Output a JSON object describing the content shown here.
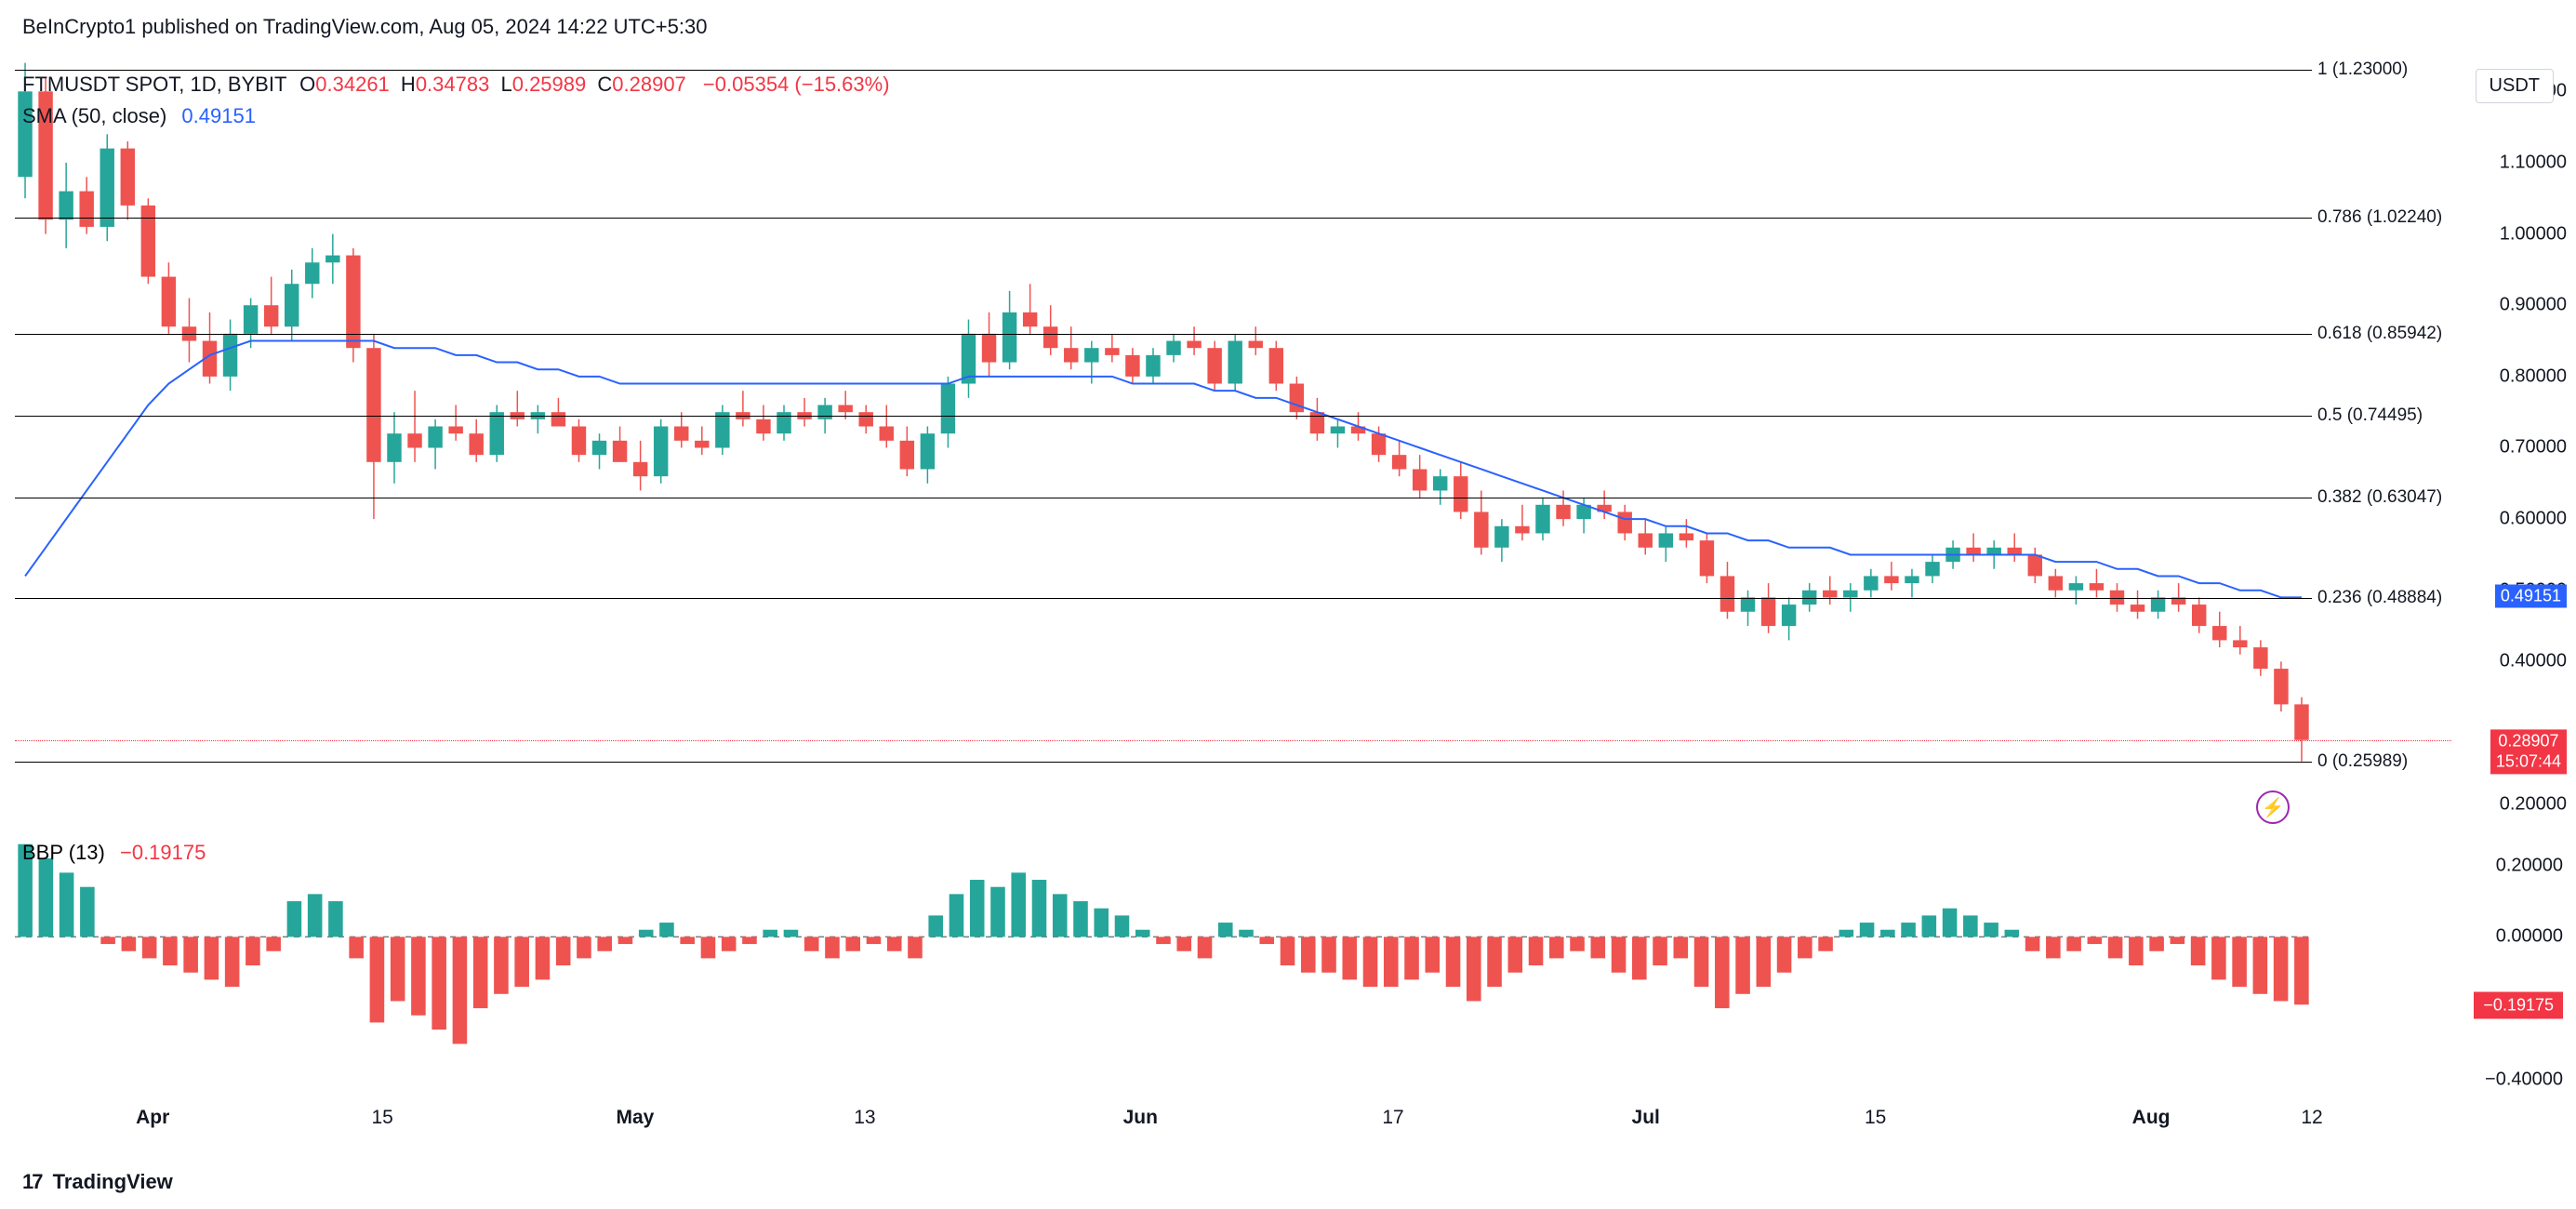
{
  "header": {
    "publisher": "BeInCrypto1 published on TradingView.com, Aug 05, 2024 14:22 UTC+5:30"
  },
  "symbol": {
    "pair": "FTMUSDT SPOT, 1D, BYBIT",
    "o_label": "O",
    "o": "0.34261",
    "h_label": "H",
    "h": "0.34783",
    "l_label": "L",
    "l": "0.25989",
    "c_label": "C",
    "c": "0.28907",
    "change": "−0.05354 (−15.63%)"
  },
  "sma": {
    "label": "SMA (50, close)",
    "value": "0.49151"
  },
  "currency_badge": "USDT",
  "price_axis": {
    "ticks": [
      "1.20000",
      "1.10000",
      "1.00000",
      "0.90000",
      "0.80000",
      "0.70000",
      "0.60000",
      "0.50000",
      "0.40000",
      "0.20000"
    ],
    "ymin": 0.18,
    "ymax": 1.25,
    "sma_tag": "0.49151",
    "close_tag": "0.28907",
    "time_tag": "15:07:44"
  },
  "fib": {
    "levels": [
      {
        "ratio": "1",
        "price": "1.23000",
        "y": 1.23
      },
      {
        "ratio": "0.786",
        "price": "1.02240",
        "y": 1.0224
      },
      {
        "ratio": "0.618",
        "price": "0.85942",
        "y": 0.85942
      },
      {
        "ratio": "0.5",
        "price": "0.74495",
        "y": 0.74495
      },
      {
        "ratio": "0.382",
        "price": "0.63047",
        "y": 0.63047
      },
      {
        "ratio": "0.236",
        "price": "0.48884",
        "y": 0.48884
      },
      {
        "ratio": "0",
        "price": "0.25989",
        "y": 0.25989
      }
    ]
  },
  "candles": {
    "up_color": "#26a69a",
    "down_color": "#ef5350",
    "data": [
      {
        "o": 1.08,
        "h": 1.24,
        "l": 1.05,
        "c": 1.2
      },
      {
        "o": 1.2,
        "h": 1.22,
        "l": 1.0,
        "c": 1.02
      },
      {
        "o": 1.02,
        "h": 1.1,
        "l": 0.98,
        "c": 1.06
      },
      {
        "o": 1.06,
        "h": 1.08,
        "l": 1.0,
        "c": 1.01
      },
      {
        "o": 1.01,
        "h": 1.14,
        "l": 0.99,
        "c": 1.12
      },
      {
        "o": 1.12,
        "h": 1.13,
        "l": 1.02,
        "c": 1.04
      },
      {
        "o": 1.04,
        "h": 1.05,
        "l": 0.93,
        "c": 0.94
      },
      {
        "o": 0.94,
        "h": 0.96,
        "l": 0.86,
        "c": 0.87
      },
      {
        "o": 0.87,
        "h": 0.91,
        "l": 0.82,
        "c": 0.85
      },
      {
        "o": 0.85,
        "h": 0.89,
        "l": 0.79,
        "c": 0.8
      },
      {
        "o": 0.8,
        "h": 0.88,
        "l": 0.78,
        "c": 0.86
      },
      {
        "o": 0.86,
        "h": 0.91,
        "l": 0.84,
        "c": 0.9
      },
      {
        "o": 0.9,
        "h": 0.94,
        "l": 0.86,
        "c": 0.87
      },
      {
        "o": 0.87,
        "h": 0.95,
        "l": 0.85,
        "c": 0.93
      },
      {
        "o": 0.93,
        "h": 0.98,
        "l": 0.91,
        "c": 0.96
      },
      {
        "o": 0.96,
        "h": 1.0,
        "l": 0.93,
        "c": 0.97
      },
      {
        "o": 0.97,
        "h": 0.98,
        "l": 0.82,
        "c": 0.84
      },
      {
        "o": 0.84,
        "h": 0.86,
        "l": 0.6,
        "c": 0.68
      },
      {
        "o": 0.68,
        "h": 0.75,
        "l": 0.65,
        "c": 0.72
      },
      {
        "o": 0.72,
        "h": 0.78,
        "l": 0.68,
        "c": 0.7
      },
      {
        "o": 0.7,
        "h": 0.74,
        "l": 0.67,
        "c": 0.73
      },
      {
        "o": 0.73,
        "h": 0.76,
        "l": 0.71,
        "c": 0.72
      },
      {
        "o": 0.72,
        "h": 0.74,
        "l": 0.68,
        "c": 0.69
      },
      {
        "o": 0.69,
        "h": 0.76,
        "l": 0.68,
        "c": 0.75
      },
      {
        "o": 0.75,
        "h": 0.78,
        "l": 0.73,
        "c": 0.74
      },
      {
        "o": 0.74,
        "h": 0.76,
        "l": 0.72,
        "c": 0.75
      },
      {
        "o": 0.75,
        "h": 0.77,
        "l": 0.73,
        "c": 0.73
      },
      {
        "o": 0.73,
        "h": 0.74,
        "l": 0.68,
        "c": 0.69
      },
      {
        "o": 0.69,
        "h": 0.72,
        "l": 0.67,
        "c": 0.71
      },
      {
        "o": 0.71,
        "h": 0.73,
        "l": 0.68,
        "c": 0.68
      },
      {
        "o": 0.68,
        "h": 0.71,
        "l": 0.64,
        "c": 0.66
      },
      {
        "o": 0.66,
        "h": 0.74,
        "l": 0.65,
        "c": 0.73
      },
      {
        "o": 0.73,
        "h": 0.75,
        "l": 0.7,
        "c": 0.71
      },
      {
        "o": 0.71,
        "h": 0.73,
        "l": 0.69,
        "c": 0.7
      },
      {
        "o": 0.7,
        "h": 0.76,
        "l": 0.69,
        "c": 0.75
      },
      {
        "o": 0.75,
        "h": 0.78,
        "l": 0.73,
        "c": 0.74
      },
      {
        "o": 0.74,
        "h": 0.76,
        "l": 0.71,
        "c": 0.72
      },
      {
        "o": 0.72,
        "h": 0.76,
        "l": 0.71,
        "c": 0.75
      },
      {
        "o": 0.75,
        "h": 0.77,
        "l": 0.73,
        "c": 0.74
      },
      {
        "o": 0.74,
        "h": 0.77,
        "l": 0.72,
        "c": 0.76
      },
      {
        "o": 0.76,
        "h": 0.78,
        "l": 0.74,
        "c": 0.75
      },
      {
        "o": 0.75,
        "h": 0.76,
        "l": 0.72,
        "c": 0.73
      },
      {
        "o": 0.73,
        "h": 0.76,
        "l": 0.7,
        "c": 0.71
      },
      {
        "o": 0.71,
        "h": 0.73,
        "l": 0.66,
        "c": 0.67
      },
      {
        "o": 0.67,
        "h": 0.73,
        "l": 0.65,
        "c": 0.72
      },
      {
        "o": 0.72,
        "h": 0.8,
        "l": 0.7,
        "c": 0.79
      },
      {
        "o": 0.79,
        "h": 0.88,
        "l": 0.77,
        "c": 0.86
      },
      {
        "o": 0.86,
        "h": 0.89,
        "l": 0.8,
        "c": 0.82
      },
      {
        "o": 0.82,
        "h": 0.92,
        "l": 0.81,
        "c": 0.89
      },
      {
        "o": 0.89,
        "h": 0.93,
        "l": 0.86,
        "c": 0.87
      },
      {
        "o": 0.87,
        "h": 0.9,
        "l": 0.83,
        "c": 0.84
      },
      {
        "o": 0.84,
        "h": 0.87,
        "l": 0.81,
        "c": 0.82
      },
      {
        "o": 0.82,
        "h": 0.85,
        "l": 0.79,
        "c": 0.84
      },
      {
        "o": 0.84,
        "h": 0.86,
        "l": 0.82,
        "c": 0.83
      },
      {
        "o": 0.83,
        "h": 0.84,
        "l": 0.79,
        "c": 0.8
      },
      {
        "o": 0.8,
        "h": 0.84,
        "l": 0.79,
        "c": 0.83
      },
      {
        "o": 0.83,
        "h": 0.86,
        "l": 0.82,
        "c": 0.85
      },
      {
        "o": 0.85,
        "h": 0.87,
        "l": 0.83,
        "c": 0.84
      },
      {
        "o": 0.84,
        "h": 0.85,
        "l": 0.78,
        "c": 0.79
      },
      {
        "o": 0.79,
        "h": 0.86,
        "l": 0.78,
        "c": 0.85
      },
      {
        "o": 0.85,
        "h": 0.87,
        "l": 0.83,
        "c": 0.84
      },
      {
        "o": 0.84,
        "h": 0.85,
        "l": 0.78,
        "c": 0.79
      },
      {
        "o": 0.79,
        "h": 0.8,
        "l": 0.74,
        "c": 0.75
      },
      {
        "o": 0.75,
        "h": 0.77,
        "l": 0.71,
        "c": 0.72
      },
      {
        "o": 0.72,
        "h": 0.74,
        "l": 0.7,
        "c": 0.73
      },
      {
        "o": 0.73,
        "h": 0.75,
        "l": 0.71,
        "c": 0.72
      },
      {
        "o": 0.72,
        "h": 0.73,
        "l": 0.68,
        "c": 0.69
      },
      {
        "o": 0.69,
        "h": 0.71,
        "l": 0.66,
        "c": 0.67
      },
      {
        "o": 0.67,
        "h": 0.69,
        "l": 0.63,
        "c": 0.64
      },
      {
        "o": 0.64,
        "h": 0.67,
        "l": 0.62,
        "c": 0.66
      },
      {
        "o": 0.66,
        "h": 0.68,
        "l": 0.6,
        "c": 0.61
      },
      {
        "o": 0.61,
        "h": 0.64,
        "l": 0.55,
        "c": 0.56
      },
      {
        "o": 0.56,
        "h": 0.6,
        "l": 0.54,
        "c": 0.59
      },
      {
        "o": 0.59,
        "h": 0.62,
        "l": 0.57,
        "c": 0.58
      },
      {
        "o": 0.58,
        "h": 0.63,
        "l": 0.57,
        "c": 0.62
      },
      {
        "o": 0.62,
        "h": 0.64,
        "l": 0.59,
        "c": 0.6
      },
      {
        "o": 0.6,
        "h": 0.63,
        "l": 0.58,
        "c": 0.62
      },
      {
        "o": 0.62,
        "h": 0.64,
        "l": 0.6,
        "c": 0.61
      },
      {
        "o": 0.61,
        "h": 0.62,
        "l": 0.57,
        "c": 0.58
      },
      {
        "o": 0.58,
        "h": 0.6,
        "l": 0.55,
        "c": 0.56
      },
      {
        "o": 0.56,
        "h": 0.59,
        "l": 0.54,
        "c": 0.58
      },
      {
        "o": 0.58,
        "h": 0.6,
        "l": 0.56,
        "c": 0.57
      },
      {
        "o": 0.57,
        "h": 0.58,
        "l": 0.51,
        "c": 0.52
      },
      {
        "o": 0.52,
        "h": 0.54,
        "l": 0.46,
        "c": 0.47
      },
      {
        "o": 0.47,
        "h": 0.5,
        "l": 0.45,
        "c": 0.49
      },
      {
        "o": 0.49,
        "h": 0.51,
        "l": 0.44,
        "c": 0.45
      },
      {
        "o": 0.45,
        "h": 0.49,
        "l": 0.43,
        "c": 0.48
      },
      {
        "o": 0.48,
        "h": 0.51,
        "l": 0.47,
        "c": 0.5
      },
      {
        "o": 0.5,
        "h": 0.52,
        "l": 0.48,
        "c": 0.49
      },
      {
        "o": 0.49,
        "h": 0.51,
        "l": 0.47,
        "c": 0.5
      },
      {
        "o": 0.5,
        "h": 0.53,
        "l": 0.49,
        "c": 0.52
      },
      {
        "o": 0.52,
        "h": 0.54,
        "l": 0.5,
        "c": 0.51
      },
      {
        "o": 0.51,
        "h": 0.53,
        "l": 0.49,
        "c": 0.52
      },
      {
        "o": 0.52,
        "h": 0.55,
        "l": 0.51,
        "c": 0.54
      },
      {
        "o": 0.54,
        "h": 0.57,
        "l": 0.53,
        "c": 0.56
      },
      {
        "o": 0.56,
        "h": 0.58,
        "l": 0.54,
        "c": 0.55
      },
      {
        "o": 0.55,
        "h": 0.57,
        "l": 0.53,
        "c": 0.56
      },
      {
        "o": 0.56,
        "h": 0.58,
        "l": 0.54,
        "c": 0.55
      },
      {
        "o": 0.55,
        "h": 0.56,
        "l": 0.51,
        "c": 0.52
      },
      {
        "o": 0.52,
        "h": 0.53,
        "l": 0.49,
        "c": 0.5
      },
      {
        "o": 0.5,
        "h": 0.52,
        "l": 0.48,
        "c": 0.51
      },
      {
        "o": 0.51,
        "h": 0.53,
        "l": 0.49,
        "c": 0.5
      },
      {
        "o": 0.5,
        "h": 0.51,
        "l": 0.47,
        "c": 0.48
      },
      {
        "o": 0.48,
        "h": 0.5,
        "l": 0.46,
        "c": 0.47
      },
      {
        "o": 0.47,
        "h": 0.5,
        "l": 0.46,
        "c": 0.49
      },
      {
        "o": 0.49,
        "h": 0.51,
        "l": 0.47,
        "c": 0.48
      },
      {
        "o": 0.48,
        "h": 0.49,
        "l": 0.44,
        "c": 0.45
      },
      {
        "o": 0.45,
        "h": 0.47,
        "l": 0.42,
        "c": 0.43
      },
      {
        "o": 0.43,
        "h": 0.45,
        "l": 0.41,
        "c": 0.42
      },
      {
        "o": 0.42,
        "h": 0.43,
        "l": 0.38,
        "c": 0.39
      },
      {
        "o": 0.39,
        "h": 0.4,
        "l": 0.33,
        "c": 0.34
      },
      {
        "o": 0.34,
        "h": 0.35,
        "l": 0.26,
        "c": 0.29
      }
    ]
  },
  "sma_line": {
    "color": "#2962ff",
    "points": [
      0.52,
      0.56,
      0.6,
      0.64,
      0.68,
      0.72,
      0.76,
      0.79,
      0.81,
      0.83,
      0.84,
      0.85,
      0.85,
      0.85,
      0.85,
      0.85,
      0.85,
      0.85,
      0.84,
      0.84,
      0.84,
      0.83,
      0.83,
      0.82,
      0.82,
      0.81,
      0.81,
      0.8,
      0.8,
      0.79,
      0.79,
      0.79,
      0.79,
      0.79,
      0.79,
      0.79,
      0.79,
      0.79,
      0.79,
      0.79,
      0.79,
      0.79,
      0.79,
      0.79,
      0.79,
      0.79,
      0.8,
      0.8,
      0.8,
      0.8,
      0.8,
      0.8,
      0.8,
      0.8,
      0.79,
      0.79,
      0.79,
      0.79,
      0.78,
      0.78,
      0.77,
      0.77,
      0.76,
      0.75,
      0.74,
      0.73,
      0.72,
      0.71,
      0.7,
      0.69,
      0.68,
      0.67,
      0.66,
      0.65,
      0.64,
      0.63,
      0.62,
      0.61,
      0.6,
      0.6,
      0.59,
      0.59,
      0.58,
      0.58,
      0.57,
      0.57,
      0.56,
      0.56,
      0.56,
      0.55,
      0.55,
      0.55,
      0.55,
      0.55,
      0.55,
      0.55,
      0.55,
      0.55,
      0.55,
      0.54,
      0.54,
      0.54,
      0.53,
      0.53,
      0.52,
      0.52,
      0.51,
      0.51,
      0.5,
      0.5,
      0.49,
      0.49
    ]
  },
  "bbp": {
    "label": "BBP (13)",
    "value": "−0.19175",
    "ymin": -0.45,
    "ymax": 0.28,
    "ticks": [
      "0.20000",
      "0.00000",
      "−0.40000"
    ],
    "tick_vals": [
      0.2,
      0.0,
      -0.4
    ],
    "tag": "−0.19175",
    "up_color": "#26a69a",
    "down_color": "#ef5350",
    "data": [
      0.26,
      0.22,
      0.18,
      0.14,
      -0.02,
      -0.04,
      -0.06,
      -0.08,
      -0.1,
      -0.12,
      -0.14,
      -0.08,
      -0.04,
      0.1,
      0.12,
      0.1,
      -0.06,
      -0.24,
      -0.18,
      -0.22,
      -0.26,
      -0.3,
      -0.2,
      -0.16,
      -0.14,
      -0.12,
      -0.08,
      -0.06,
      -0.04,
      -0.02,
      0.02,
      0.04,
      -0.02,
      -0.06,
      -0.04,
      -0.02,
      0.02,
      0.02,
      -0.04,
      -0.06,
      -0.04,
      -0.02,
      -0.04,
      -0.06,
      0.06,
      0.12,
      0.16,
      0.14,
      0.18,
      0.16,
      0.12,
      0.1,
      0.08,
      0.06,
      0.02,
      -0.02,
      -0.04,
      -0.06,
      0.04,
      0.02,
      -0.02,
      -0.08,
      -0.1,
      -0.1,
      -0.12,
      -0.14,
      -0.14,
      -0.12,
      -0.1,
      -0.14,
      -0.18,
      -0.14,
      -0.1,
      -0.08,
      -0.06,
      -0.04,
      -0.06,
      -0.1,
      -0.12,
      -0.08,
      -0.06,
      -0.14,
      -0.2,
      -0.16,
      -0.14,
      -0.1,
      -0.06,
      -0.04,
      0.02,
      0.04,
      0.02,
      0.04,
      0.06,
      0.08,
      0.06,
      0.04,
      0.02,
      -0.04,
      -0.06,
      -0.04,
      -0.02,
      -0.06,
      -0.08,
      -0.04,
      -0.02,
      -0.08,
      -0.12,
      -0.14,
      -0.16,
      -0.18,
      -0.19
    ]
  },
  "xaxis": {
    "labels": [
      {
        "t": "Apr",
        "x": 0.06,
        "bold": true
      },
      {
        "t": "15",
        "x": 0.16,
        "bold": false
      },
      {
        "t": "May",
        "x": 0.27,
        "bold": true
      },
      {
        "t": "13",
        "x": 0.37,
        "bold": false
      },
      {
        "t": "Jun",
        "x": 0.49,
        "bold": true
      },
      {
        "t": "17",
        "x": 0.6,
        "bold": false
      },
      {
        "t": "Jul",
        "x": 0.71,
        "bold": true
      },
      {
        "t": "15",
        "x": 0.81,
        "bold": false
      },
      {
        "t": "Aug",
        "x": 0.93,
        "bold": true
      },
      {
        "t": "12",
        "x": 1.0,
        "bold": false
      }
    ]
  },
  "footer": {
    "logo": "17",
    "text": "TradingView"
  }
}
